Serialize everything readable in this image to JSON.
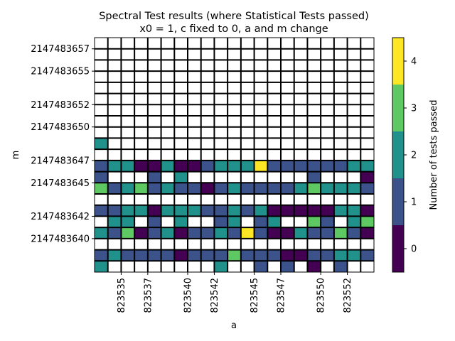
{
  "chart_data": {
    "type": "heatmap",
    "title": "Spectral Test results (where Statistical Tests passed)",
    "subtitle": "x0 = 1, c fixed to 0, a and m change",
    "xlabel": "a",
    "ylabel": "m",
    "colorbar_label": "Number of tests passed",
    "x_tick_labels": [
      "823535",
      "823537",
      "823540",
      "823542",
      "823545",
      "823547",
      "823550",
      "823552"
    ],
    "y_tick_labels": [
      "2147483657",
      "2147483655",
      "2147483652",
      "2147483650",
      "2147483647",
      "2147483645",
      "2147483642",
      "2147483640"
    ],
    "colorbar_ticks": [
      "0",
      "1",
      "2",
      "3",
      "4"
    ],
    "value_range": [
      0,
      4
    ],
    "colors": {
      "0": "#440154",
      "1": "#3b528b",
      "2": "#21918c",
      "3": "#5ec962",
      "4": "#fde725",
      "missing": "#ffffff",
      "grid": "#000000"
    },
    "rows_top_to_bottom": [
      [
        -1,
        -1,
        -1,
        -1,
        -1,
        -1,
        -1,
        -1,
        -1,
        -1,
        -1,
        -1,
        -1,
        -1,
        -1,
        -1,
        -1,
        -1,
        -1,
        -1,
        -1
      ],
      [
        -1,
        -1,
        -1,
        -1,
        -1,
        -1,
        -1,
        -1,
        -1,
        -1,
        -1,
        -1,
        -1,
        -1,
        -1,
        -1,
        -1,
        -1,
        -1,
        -1,
        -1
      ],
      [
        -1,
        -1,
        -1,
        -1,
        -1,
        -1,
        -1,
        -1,
        -1,
        -1,
        -1,
        -1,
        -1,
        -1,
        -1,
        -1,
        -1,
        -1,
        -1,
        -1,
        -1
      ],
      [
        -1,
        -1,
        -1,
        -1,
        -1,
        -1,
        -1,
        -1,
        -1,
        -1,
        -1,
        -1,
        -1,
        -1,
        -1,
        -1,
        -1,
        -1,
        -1,
        -1,
        -1
      ],
      [
        -1,
        -1,
        -1,
        -1,
        -1,
        -1,
        -1,
        -1,
        -1,
        -1,
        -1,
        -1,
        -1,
        -1,
        -1,
        -1,
        -1,
        -1,
        -1,
        -1,
        -1
      ],
      [
        -1,
        -1,
        -1,
        -1,
        -1,
        -1,
        -1,
        -1,
        -1,
        -1,
        -1,
        -1,
        -1,
        -1,
        -1,
        -1,
        -1,
        -1,
        -1,
        -1,
        -1
      ],
      [
        -1,
        -1,
        -1,
        -1,
        -1,
        -1,
        -1,
        -1,
        -1,
        -1,
        -1,
        -1,
        -1,
        -1,
        -1,
        -1,
        -1,
        -1,
        -1,
        -1,
        -1
      ],
      [
        -1,
        -1,
        -1,
        -1,
        -1,
        -1,
        -1,
        -1,
        -1,
        -1,
        -1,
        -1,
        -1,
        -1,
        -1,
        -1,
        -1,
        -1,
        -1,
        -1,
        -1
      ],
      [
        -1,
        -1,
        -1,
        -1,
        -1,
        -1,
        -1,
        -1,
        -1,
        -1,
        -1,
        -1,
        -1,
        -1,
        -1,
        -1,
        -1,
        -1,
        -1,
        -1,
        -1
      ],
      [
        2,
        -1,
        -1,
        -1,
        -1,
        -1,
        -1,
        -1,
        -1,
        -1,
        -1,
        -1,
        -1,
        -1,
        -1,
        -1,
        -1,
        -1,
        -1,
        -1,
        -1
      ],
      [
        -1,
        -1,
        -1,
        -1,
        -1,
        -1,
        -1,
        -1,
        -1,
        -1,
        -1,
        -1,
        -1,
        -1,
        -1,
        -1,
        -1,
        -1,
        -1,
        -1,
        -1
      ],
      [
        1,
        2,
        2,
        0,
        0,
        2,
        0,
        0,
        1,
        2,
        2,
        2,
        4,
        1,
        1,
        1,
        1,
        1,
        1,
        2,
        2
      ],
      [
        1,
        -1,
        -1,
        -1,
        1,
        -1,
        2,
        -1,
        -1,
        -1,
        -1,
        -1,
        -1,
        -1,
        -1,
        -1,
        1,
        -1,
        -1,
        -1,
        0
      ],
      [
        3,
        1,
        2,
        3,
        1,
        2,
        1,
        1,
        0,
        1,
        2,
        1,
        1,
        1,
        1,
        2,
        3,
        2,
        2,
        2,
        1
      ],
      [
        -1,
        -1,
        -1,
        -1,
        -1,
        -1,
        -1,
        -1,
        -1,
        -1,
        -1,
        -1,
        -1,
        -1,
        -1,
        -1,
        -1,
        -1,
        -1,
        -1,
        -1
      ],
      [
        1,
        1,
        2,
        2,
        0,
        2,
        2,
        2,
        1,
        1,
        2,
        1,
        2,
        0,
        0,
        0,
        0,
        0,
        2,
        2,
        0
      ],
      [
        -1,
        2,
        2,
        -1,
        1,
        -1,
        2,
        -1,
        -1,
        1,
        2,
        -1,
        1,
        2,
        -1,
        -1,
        3,
        1,
        -1,
        2,
        3
      ],
      [
        2,
        1,
        3,
        0,
        1,
        2,
        0,
        1,
        1,
        2,
        1,
        4,
        1,
        0,
        0,
        2,
        1,
        1,
        3,
        1,
        0
      ],
      [
        -1,
        -1,
        -1,
        -1,
        -1,
        -1,
        -1,
        -1,
        -1,
        -1,
        -1,
        -1,
        -1,
        -1,
        -1,
        -1,
        -1,
        -1,
        -1,
        -1,
        -1
      ],
      [
        1,
        2,
        1,
        1,
        1,
        1,
        0,
        1,
        1,
        1,
        3,
        1,
        1,
        1,
        0,
        0,
        1,
        1,
        2,
        2,
        1
      ],
      [
        2,
        -1,
        -1,
        -1,
        -1,
        -1,
        -1,
        -1,
        -1,
        2,
        -1,
        -1,
        1,
        -1,
        1,
        -1,
        0,
        -1,
        1,
        -1,
        -1
      ]
    ]
  }
}
